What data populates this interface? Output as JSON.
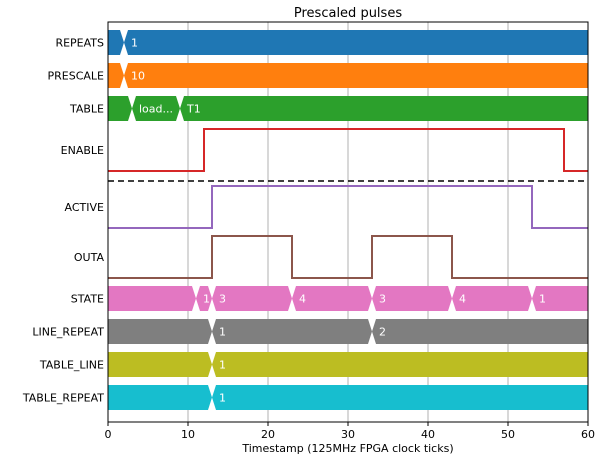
{
  "chart_data": {
    "type": "timing",
    "title": "Prescaled pulses",
    "xlabel": "Timestamp (125MHz FPGA clock ticks)",
    "xlim": [
      0,
      60
    ],
    "xticks": [
      0,
      10,
      20,
      30,
      40,
      50,
      60
    ],
    "grid": "vertical",
    "divider_after_row": "ENABLE",
    "rows": [
      {
        "name": "REPEATS",
        "kind": "bus",
        "color": "#1f77b4",
        "segments": [
          {
            "start": 0,
            "value": ""
          },
          {
            "start": 2,
            "value": "1"
          }
        ]
      },
      {
        "name": "PRESCALE",
        "kind": "bus",
        "color": "#ff7f0e",
        "segments": [
          {
            "start": 0,
            "value": ""
          },
          {
            "start": 2,
            "value": "10"
          }
        ]
      },
      {
        "name": "TABLE",
        "kind": "bus",
        "color": "#2ca02c",
        "segments": [
          {
            "start": 0,
            "value": ""
          },
          {
            "start": 3,
            "value": "load..."
          },
          {
            "start": 9,
            "value": "T1"
          }
        ]
      },
      {
        "name": "ENABLE",
        "kind": "bit",
        "color": "#d62728",
        "initial": 0,
        "transitions": [
          12,
          57
        ]
      },
      {
        "name": "ACTIVE",
        "kind": "bit",
        "color": "#9467bd",
        "initial": 0,
        "transitions": [
          13,
          53
        ]
      },
      {
        "name": "OUTA",
        "kind": "bit",
        "color": "#8c564b",
        "initial": 0,
        "transitions": [
          13,
          23,
          33,
          43
        ]
      },
      {
        "name": "STATE",
        "kind": "bus",
        "color": "#e377c2",
        "segments": [
          {
            "start": 0,
            "value": ""
          },
          {
            "start": 11,
            "value": "1"
          },
          {
            "start": 13,
            "value": "3"
          },
          {
            "start": 23,
            "value": "4"
          },
          {
            "start": 33,
            "value": "3"
          },
          {
            "start": 43,
            "value": "4"
          },
          {
            "start": 53,
            "value": "1"
          }
        ]
      },
      {
        "name": "LINE_REPEAT",
        "kind": "bus",
        "color": "#7f7f7f",
        "segments": [
          {
            "start": 0,
            "value": ""
          },
          {
            "start": 13,
            "value": "1"
          },
          {
            "start": 33,
            "value": "2"
          }
        ]
      },
      {
        "name": "TABLE_LINE",
        "kind": "bus",
        "color": "#bcbd22",
        "segments": [
          {
            "start": 0,
            "value": ""
          },
          {
            "start": 13,
            "value": "1"
          }
        ]
      },
      {
        "name": "TABLE_REPEAT",
        "kind": "bus",
        "color": "#17becf",
        "segments": [
          {
            "start": 0,
            "value": ""
          },
          {
            "start": 13,
            "value": "1"
          }
        ]
      }
    ]
  }
}
